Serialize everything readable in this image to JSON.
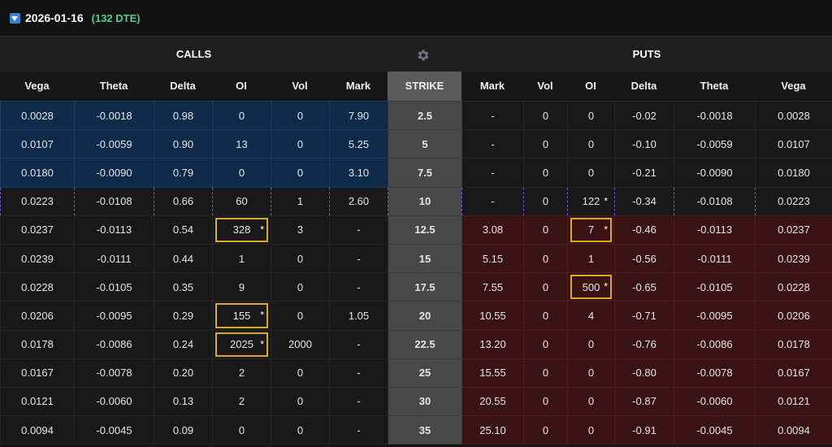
{
  "header": {
    "expiration": "2026-01-16",
    "dte": "(132 DTE)"
  },
  "sections": {
    "calls": "CALLS",
    "puts": "PUTS"
  },
  "columns": {
    "calls": [
      "Vega",
      "Theta",
      "Delta",
      "OI",
      "Vol",
      "Mark"
    ],
    "strike": "STRIKE",
    "puts": [
      "Mark",
      "Vol",
      "OI",
      "Delta",
      "Theta",
      "Vega"
    ]
  },
  "rows": [
    {
      "call": {
        "vega": "0.0028",
        "theta": "-0.0018",
        "delta": "0.98",
        "oi": "0",
        "vol": "0",
        "mark": "7.90"
      },
      "strike": "2.5",
      "put": {
        "mark": "-",
        "vol": "0",
        "oi": "0",
        "delta": "-0.02",
        "theta": "-0.0018",
        "vega": "0.0028"
      }
    },
    {
      "call": {
        "vega": "0.0107",
        "theta": "-0.0059",
        "delta": "0.90",
        "oi": "13",
        "vol": "0",
        "mark": "5.25"
      },
      "strike": "5",
      "put": {
        "mark": "-",
        "vol": "0",
        "oi": "0",
        "delta": "-0.10",
        "theta": "-0.0059",
        "vega": "0.0107"
      }
    },
    {
      "call": {
        "vega": "0.0180",
        "theta": "-0.0090",
        "delta": "0.79",
        "oi": "0",
        "vol": "0",
        "mark": "3.10"
      },
      "strike": "7.5",
      "put": {
        "mark": "-",
        "vol": "0",
        "oi": "0",
        "delta": "-0.21",
        "theta": "-0.0090",
        "vega": "0.0180"
      }
    },
    {
      "call": {
        "vega": "0.0223",
        "theta": "-0.0108",
        "delta": "0.66",
        "oi": "60",
        "vol": "1",
        "mark": "2.60"
      },
      "strike": "10",
      "put": {
        "mark": "-",
        "vol": "0",
        "oi": "122",
        "delta": "-0.34",
        "theta": "-0.0108",
        "vega": "0.0223"
      }
    },
    {
      "call": {
        "vega": "0.0237",
        "theta": "-0.0113",
        "delta": "0.54",
        "oi": "328",
        "vol": "3",
        "mark": "-"
      },
      "strike": "12.5",
      "put": {
        "mark": "3.08",
        "vol": "0",
        "oi": "7",
        "delta": "-0.46",
        "theta": "-0.0113",
        "vega": "0.0237"
      }
    },
    {
      "call": {
        "vega": "0.0239",
        "theta": "-0.0111",
        "delta": "0.44",
        "oi": "1",
        "vol": "0",
        "mark": "-"
      },
      "strike": "15",
      "put": {
        "mark": "5.15",
        "vol": "0",
        "oi": "1",
        "delta": "-0.56",
        "theta": "-0.0111",
        "vega": "0.0239"
      }
    },
    {
      "call": {
        "vega": "0.0228",
        "theta": "-0.0105",
        "delta": "0.35",
        "oi": "9",
        "vol": "0",
        "mark": "-"
      },
      "strike": "17.5",
      "put": {
        "mark": "7.55",
        "vol": "0",
        "oi": "500",
        "delta": "-0.65",
        "theta": "-0.0105",
        "vega": "0.0228"
      }
    },
    {
      "call": {
        "vega": "0.0206",
        "theta": "-0.0095",
        "delta": "0.29",
        "oi": "155",
        "vol": "0",
        "mark": "1.05"
      },
      "strike": "20",
      "put": {
        "mark": "10.55",
        "vol": "0",
        "oi": "4",
        "delta": "-0.71",
        "theta": "-0.0095",
        "vega": "0.0206"
      }
    },
    {
      "call": {
        "vega": "0.0178",
        "theta": "-0.0086",
        "delta": "0.24",
        "oi": "2025",
        "vol": "2000",
        "mark": "-"
      },
      "strike": "22.5",
      "put": {
        "mark": "13.20",
        "vol": "0",
        "oi": "0",
        "delta": "-0.76",
        "theta": "-0.0086",
        "vega": "0.0178"
      }
    },
    {
      "call": {
        "vega": "0.0167",
        "theta": "-0.0078",
        "delta": "0.20",
        "oi": "2",
        "vol": "0",
        "mark": "-"
      },
      "strike": "25",
      "put": {
        "mark": "15.55",
        "vol": "0",
        "oi": "0",
        "delta": "-0.80",
        "theta": "-0.0078",
        "vega": "0.0167"
      }
    },
    {
      "call": {
        "vega": "0.0121",
        "theta": "-0.0060",
        "delta": "0.13",
        "oi": "2",
        "vol": "0",
        "mark": "-"
      },
      "strike": "30",
      "put": {
        "mark": "20.55",
        "vol": "0",
        "oi": "0",
        "delta": "-0.87",
        "theta": "-0.0060",
        "vega": "0.0121"
      }
    },
    {
      "call": {
        "vega": "0.0094",
        "theta": "-0.0045",
        "delta": "0.09",
        "oi": "0",
        "vol": "0",
        "mark": "-"
      },
      "strike": "35",
      "put": {
        "mark": "25.10",
        "vol": "0",
        "oi": "0",
        "delta": "-0.91",
        "theta": "-0.0045",
        "vega": "0.0094"
      }
    }
  ],
  "highlight_marker": "*",
  "icons": {
    "expand": "expand-arrow-icon",
    "settings": "gear-icon"
  },
  "colors": {
    "call_itm_bg": "#0e2a4a",
    "put_itm_bg": "#3a1212",
    "strike_bg": "#484848",
    "atm_dash": "#7a4fd1",
    "oi_highlight": "#d9a92b",
    "dte_green": "#5cc98a"
  }
}
